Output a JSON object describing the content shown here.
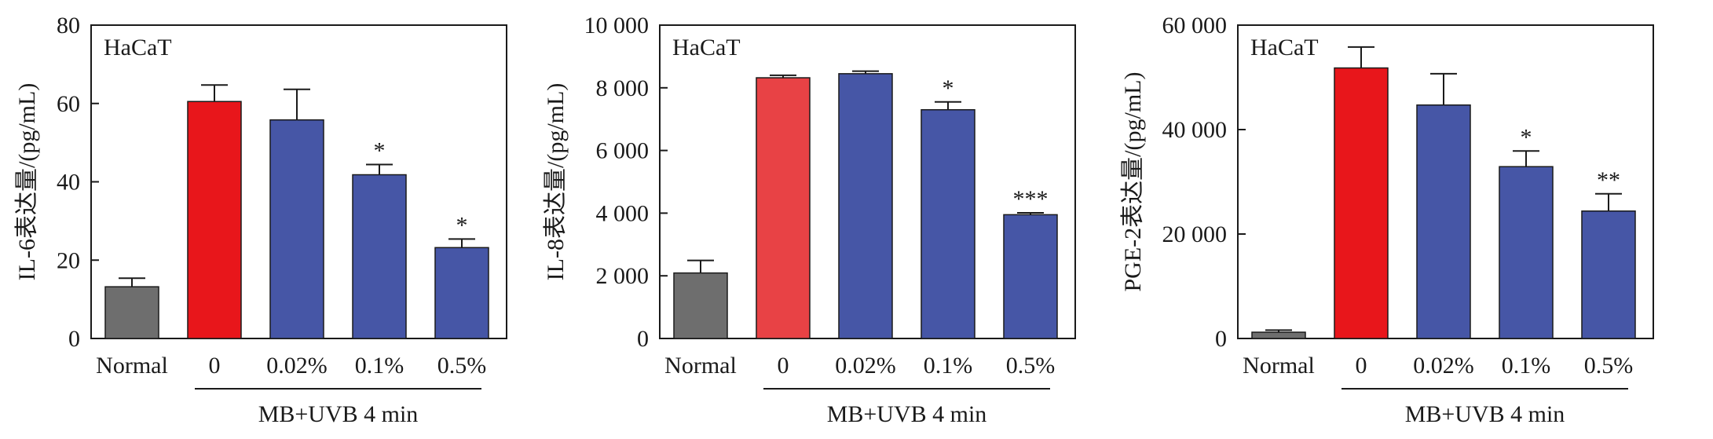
{
  "chart_data": [
    {
      "type": "bar",
      "cell_label": "HaCaT",
      "ylabel": "IL-6表达量/(pg/mL)",
      "ylim": [
        0,
        80
      ],
      "yticks": [
        0,
        20,
        40,
        60,
        80
      ],
      "ytick_labels": [
        "0",
        "20",
        "40",
        "60",
        "80"
      ],
      "categories": [
        "Normal",
        "0",
        "0.02%",
        "0.1%",
        "0.5%"
      ],
      "values": [
        13.2,
        60.5,
        55.8,
        41.8,
        23.2
      ],
      "errors": [
        2.2,
        4.2,
        7.8,
        2.6,
        2.2
      ],
      "significance": [
        "",
        "",
        "",
        "*",
        "*"
      ],
      "bar_colors": [
        "#6e6e6e",
        "#e8161b",
        "#4656a6",
        "#4656a6",
        "#4656a6"
      ],
      "group_label": "MB+UVB 4 min"
    },
    {
      "type": "bar",
      "cell_label": "HaCaT",
      "ylabel": "IL-8表达量/(pg/mL)",
      "ylim": [
        0,
        10000
      ],
      "yticks": [
        0,
        2000,
        4000,
        6000,
        8000,
        10000
      ],
      "ytick_labels": [
        "0",
        "2 000",
        "4 000",
        "6 000",
        "8 000",
        "10 000"
      ],
      "categories": [
        "Normal",
        "0",
        "0.02%",
        "0.1%",
        "0.5%"
      ],
      "values": [
        2090,
        8320,
        8450,
        7300,
        3950
      ],
      "errors": [
        400,
        80,
        80,
        250,
        60
      ],
      "significance": [
        "",
        "",
        "",
        "*",
        "***"
      ],
      "bar_colors": [
        "#6e6e6e",
        "#e84245",
        "#4656a6",
        "#4656a6",
        "#4656a6"
      ],
      "group_label": "MB+UVB 4 min"
    },
    {
      "type": "bar",
      "cell_label": "HaCaT",
      "ylabel": "PGE-2表达量/(pg/mL)",
      "ylim": [
        0,
        60000
      ],
      "yticks": [
        0,
        20000,
        40000,
        60000
      ],
      "ytick_labels": [
        "0",
        "20 000",
        "40 000",
        "60 000"
      ],
      "categories": [
        "Normal",
        "0",
        "0.02%",
        "0.1%",
        "0.5%"
      ],
      "values": [
        1200,
        51800,
        44700,
        32900,
        24400
      ],
      "errors": [
        400,
        4000,
        6000,
        3000,
        3300
      ],
      "significance": [
        "",
        "",
        "",
        "*",
        "**"
      ],
      "bar_colors": [
        "#6e6e6e",
        "#e8161b",
        "#4656a6",
        "#4656a6",
        "#4656a6"
      ],
      "group_label": "MB+UVB 4 min"
    }
  ]
}
